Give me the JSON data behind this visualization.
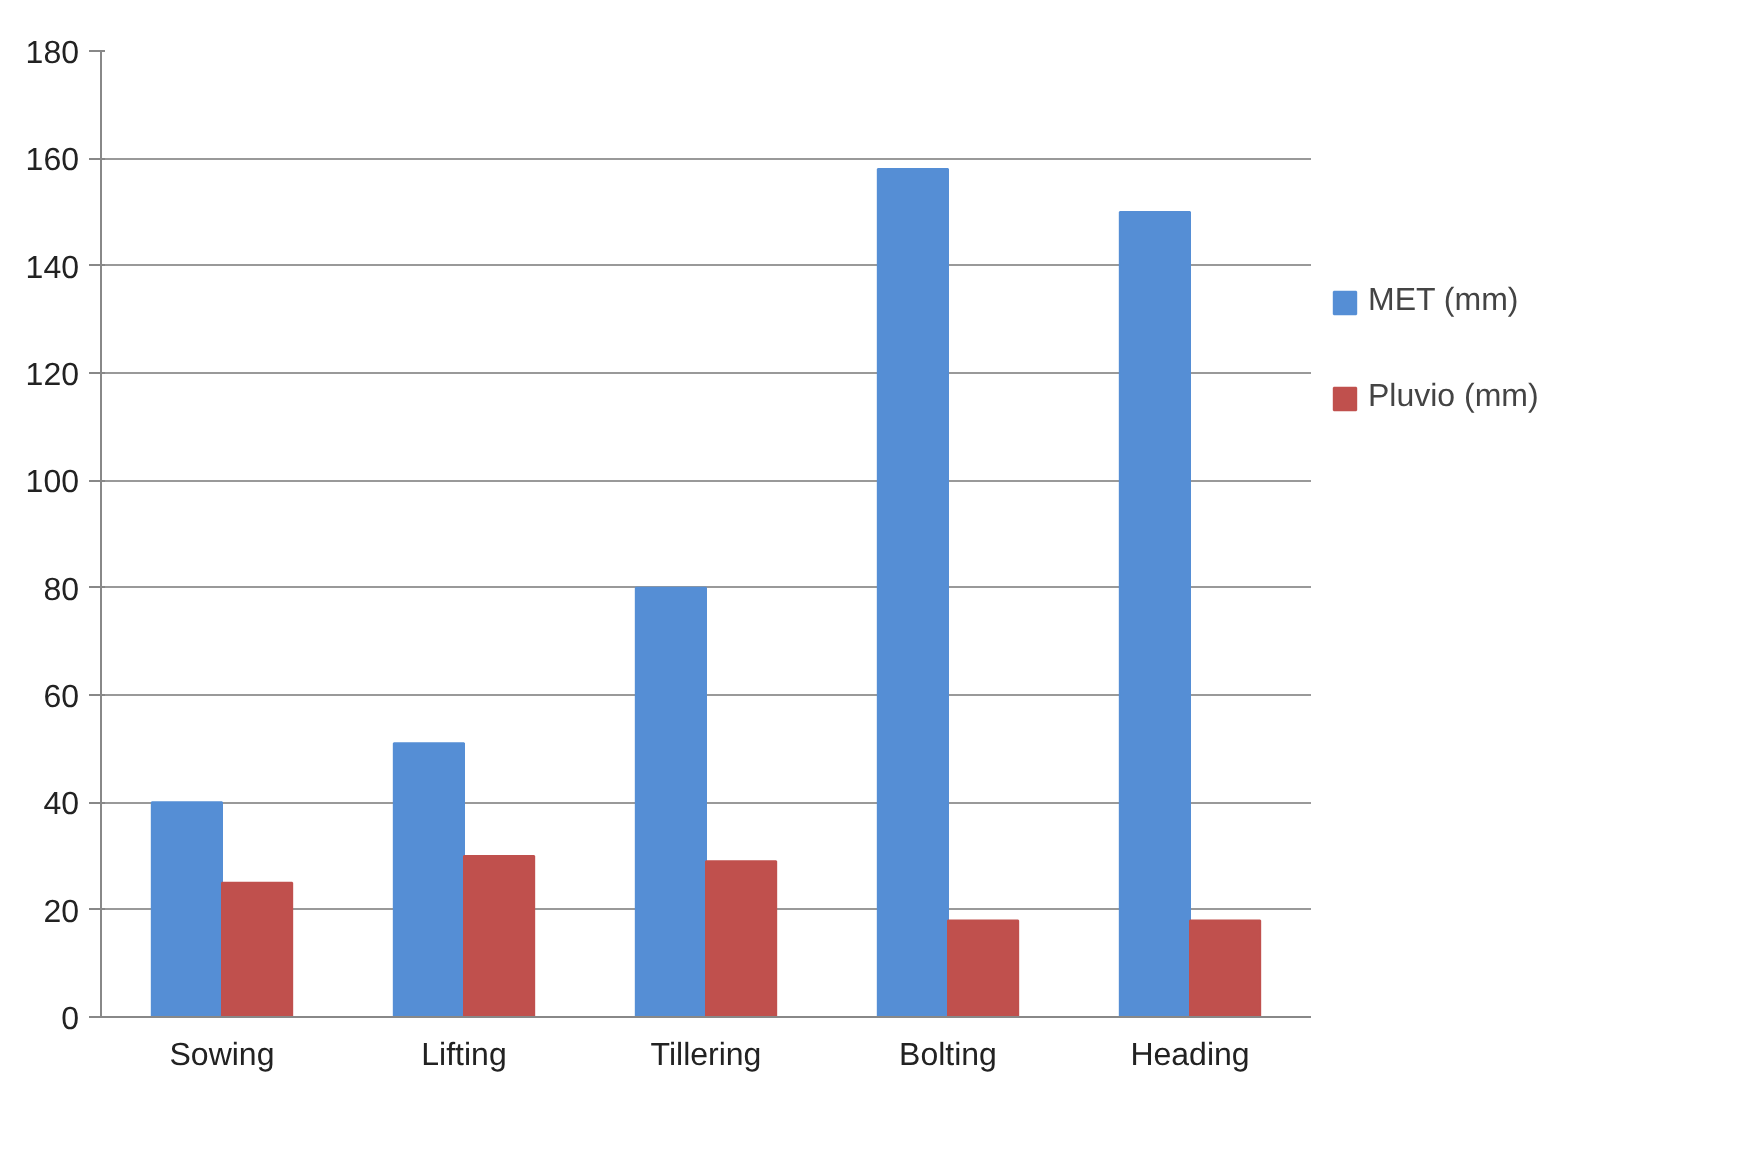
{
  "chart_data": {
    "type": "bar",
    "categories": [
      "Sowing",
      "Lifting",
      "Tillering",
      "Bolting",
      "Heading"
    ],
    "series": [
      {
        "name": "MET (mm)",
        "color": "#558ed5",
        "values": [
          40,
          51,
          80,
          158,
          150
        ]
      },
      {
        "name": "Pluvio (mm)",
        "color": "#c0504d",
        "values": [
          25,
          30,
          29,
          18,
          18
        ]
      }
    ],
    "ylim": [
      0,
      180
    ],
    "yticks": [
      0,
      20,
      40,
      60,
      80,
      100,
      120,
      140,
      160,
      180
    ],
    "grid": "y",
    "legend": "right"
  }
}
